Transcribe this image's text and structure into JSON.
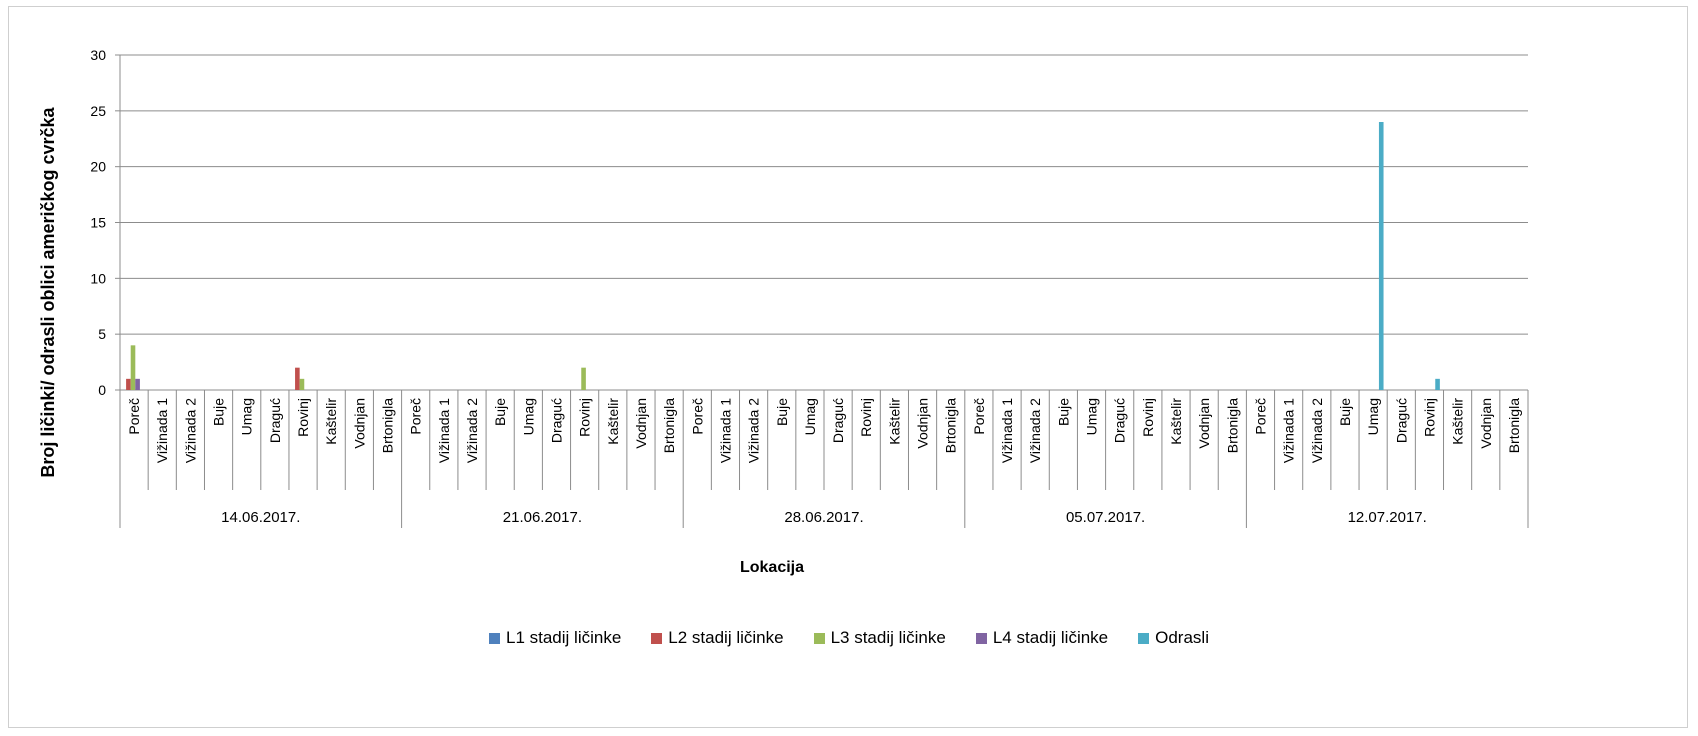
{
  "chart_data": {
    "type": "bar",
    "ylabel": "Broj ličinki/ odrasli oblici američkog cvrčka",
    "xlabel": "Lokacija",
    "ylim": [
      0,
      30
    ],
    "yticks": [
      "0",
      "5",
      "10",
      "15",
      "20",
      "25",
      "30"
    ],
    "grid": true,
    "legend_position": "bottom",
    "dates": [
      "14.06.2017.",
      "21.06.2017.",
      "28.06.2017.",
      "05.07.2017.",
      "12.07.2017."
    ],
    "locations": [
      "Poreč",
      "Vižinada 1",
      "Vižinada 2",
      "Buje",
      "Umag",
      "Draguć",
      "Rovinj",
      "Kaštelir",
      "Vodnjan",
      "Brtonigla"
    ],
    "series": [
      {
        "name": "L1 stadij ličinke",
        "color": "#4F81BD",
        "values": [
          [
            0,
            0,
            0,
            0,
            0,
            0,
            0,
            0,
            0,
            0
          ],
          [
            0,
            0,
            0,
            0,
            0,
            0,
            0,
            0,
            0,
            0
          ],
          [
            0,
            0,
            0,
            0,
            0,
            0,
            0,
            0,
            0,
            0
          ],
          [
            0,
            0,
            0,
            0,
            0,
            0,
            0,
            0,
            0,
            0
          ],
          [
            0,
            0,
            0,
            0,
            0,
            0,
            0,
            0,
            0,
            0
          ]
        ]
      },
      {
        "name": "L2 stadij ličinke",
        "color": "#C0504D",
        "values": [
          [
            1,
            0,
            0,
            0,
            0,
            0,
            2,
            0,
            0,
            0
          ],
          [
            0,
            0,
            0,
            0,
            0,
            0,
            0,
            0,
            0,
            0
          ],
          [
            0,
            0,
            0,
            0,
            0,
            0,
            0,
            0,
            0,
            0
          ],
          [
            0,
            0,
            0,
            0,
            0,
            0,
            0,
            0,
            0,
            0
          ],
          [
            0,
            0,
            0,
            0,
            0,
            0,
            0,
            0,
            0,
            0
          ]
        ]
      },
      {
        "name": "L3 stadij ličinke",
        "color": "#9BBB59",
        "values": [
          [
            4,
            0,
            0,
            0,
            0,
            0,
            1,
            0,
            0,
            0
          ],
          [
            0,
            0,
            0,
            0,
            0,
            0,
            2,
            0,
            0,
            0
          ],
          [
            0,
            0,
            0,
            0,
            0,
            0,
            0,
            0,
            0,
            0
          ],
          [
            0,
            0,
            0,
            0,
            0,
            0,
            0,
            0,
            0,
            0
          ],
          [
            0,
            0,
            0,
            0,
            0,
            0,
            0,
            0,
            0,
            0
          ]
        ]
      },
      {
        "name": "L4 stadij ličinke",
        "color": "#8064A2",
        "values": [
          [
            1,
            0,
            0,
            0,
            0,
            0,
            0,
            0,
            0,
            0
          ],
          [
            0,
            0,
            0,
            0,
            0,
            0,
            0,
            0,
            0,
            0
          ],
          [
            0,
            0,
            0,
            0,
            0,
            0,
            0,
            0,
            0,
            0
          ],
          [
            0,
            0,
            0,
            0,
            0,
            0,
            0,
            0,
            0,
            0
          ],
          [
            0,
            0,
            0,
            0,
            0,
            0,
            0,
            0,
            0,
            0
          ]
        ]
      },
      {
        "name": "Odrasli",
        "color": "#4BACC6",
        "values": [
          [
            0,
            0,
            0,
            0,
            0,
            0,
            0,
            0,
            0,
            0
          ],
          [
            0,
            0,
            0,
            0,
            0,
            0,
            0,
            0,
            0,
            0
          ],
          [
            0,
            0,
            0,
            0,
            0,
            0,
            0,
            0,
            0,
            0
          ],
          [
            0,
            0,
            0,
            0,
            0,
            0,
            0,
            0,
            0,
            0
          ],
          [
            0,
            0,
            0,
            0,
            24,
            0,
            1,
            0,
            0,
            0
          ]
        ]
      }
    ]
  }
}
